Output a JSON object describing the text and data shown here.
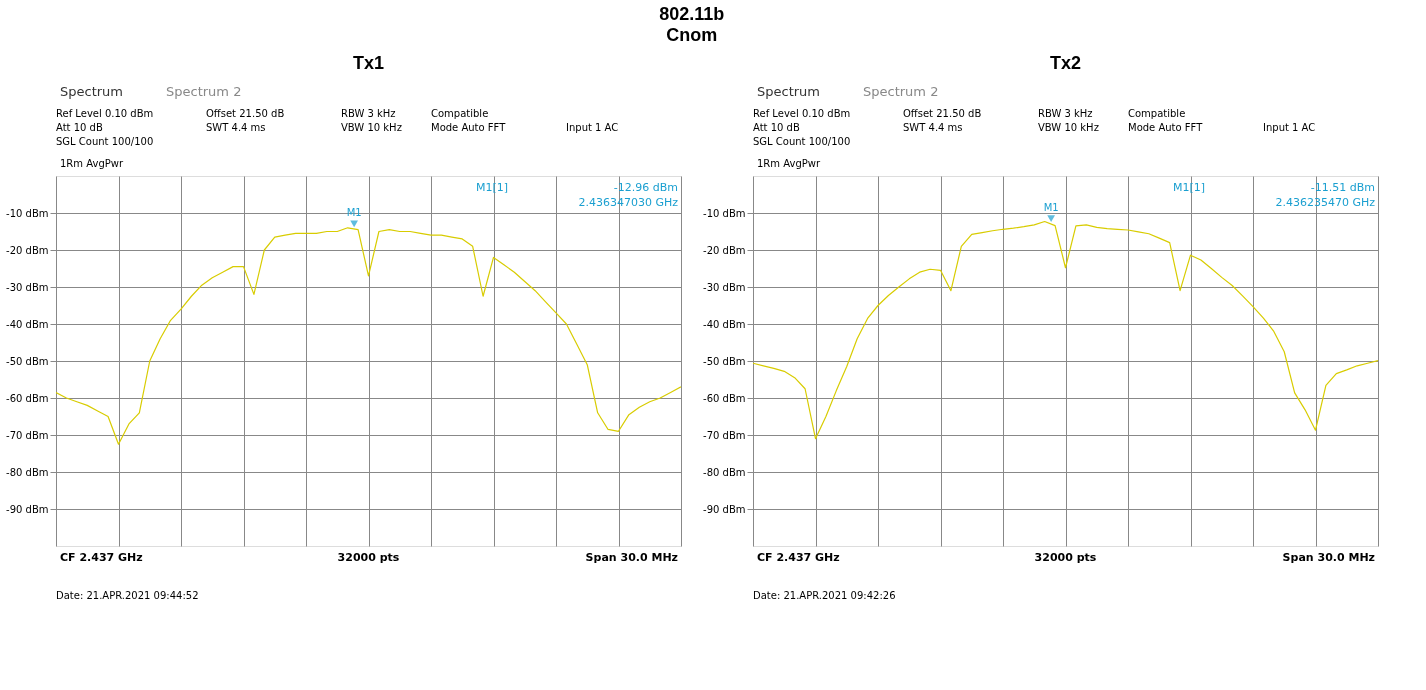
{
  "chart_data": [
    {
      "type": "line",
      "title": "802.11b",
      "subtitle": "Cnom",
      "categories": [
        null,
        null,
        null,
        null,
        null,
        null,
        null,
        null,
        null,
        null,
        null,
        null,
        null,
        null,
        null,
        null,
        null,
        null,
        null,
        null,
        null,
        null,
        null,
        null,
        null,
        null,
        null,
        null,
        null,
        null,
        null,
        null,
        null,
        null,
        null,
        null,
        null,
        null,
        null,
        null,
        null,
        null,
        null,
        null,
        null,
        null,
        null,
        null,
        null,
        null,
        null,
        null,
        null,
        null,
        null,
        null,
        null,
        null,
        null,
        null,
        null
      ],
      "ylim": [
        -100,
        0
      ],
      "yticks": [
        {
          "value": -10,
          "label": "-10 dBm"
        },
        {
          "value": -20,
          "label": "-20 dBm"
        },
        {
          "value": -30,
          "label": "-30 dBm"
        },
        {
          "value": -40,
          "label": "-40 dBm"
        },
        {
          "value": -50,
          "label": "-50 dBm"
        },
        {
          "value": -60,
          "label": "-60 dBm"
        },
        {
          "value": -70,
          "label": "-70 dBm"
        },
        {
          "value": -80,
          "label": "-80 dBm"
        },
        {
          "value": -90,
          "label": "-90 dBm"
        }
      ],
      "tick_labels": "y",
      "grid": true,
      "line_style": "solid",
      "series": [
        {
          "color": "#d8cc00",
          "values": [
            -58.5,
            -60,
            -61,
            -62,
            -63.5,
            -65,
            -72.5,
            -67,
            -64,
            -50,
            -44,
            -39,
            -36,
            -32.5,
            -29.5,
            -27.5,
            -26,
            -24.5,
            -24.5,
            -32,
            -20,
            -16.5,
            -16,
            -15.5,
            -15.5,
            -15.5,
            -15,
            -15,
            -14,
            -14.5,
            -27,
            -15,
            -14.5,
            -15,
            -15,
            -15.5,
            -16,
            -16,
            -16.5,
            -17,
            -19,
            -32.5,
            -22,
            -24,
            -26,
            -28.5,
            -31,
            -34,
            -37,
            -40,
            -45.5,
            -51,
            -64,
            -68.5,
            -69,
            -64.5,
            -62.5,
            -61,
            -60,
            -58.5,
            -57
          ]
        }
      ],
      "annotations": [
        "Tx1",
        "Spectrum",
        "Spectrum 2",
        "Ref Level 0.10 dBm",
        "Offset 21.50 dB",
        "RBW 3 kHz",
        "Compatible",
        "Att 10 dB",
        "SWT 4.4 ms",
        "VBW 10 kHz",
        "Mode Auto FFT",
        "Input 1 AC",
        "SGL Count 100/100",
        "1Rm AvgPwr",
        "M1[1]",
        "-12.96 dBm",
        "2.436347030 GHz",
        "CF 2.437 GHz",
        "32000 pts",
        "Span 30.0 MHz",
        "Date: 21.APR.2021 09:44:52",
        {
          "text": "M1",
          "y": -12.96
        }
      ]
    },
    {
      "type": "line",
      "categories": [
        null,
        null,
        null,
        null,
        null,
        null,
        null,
        null,
        null,
        null,
        null,
        null,
        null,
        null,
        null,
        null,
        null,
        null,
        null,
        null,
        null,
        null,
        null,
        null,
        null,
        null,
        null,
        null,
        null,
        null,
        null,
        null,
        null,
        null,
        null,
        null,
        null,
        null,
        null,
        null,
        null,
        null,
        null,
        null,
        null,
        null,
        null,
        null,
        null,
        null,
        null,
        null,
        null,
        null,
        null,
        null,
        null,
        null,
        null,
        null,
        null
      ],
      "ylim": [
        -100,
        0
      ],
      "yticks": [
        {
          "value": -10,
          "label": "-10 dBm"
        },
        {
          "value": -20,
          "label": "-20 dBm"
        },
        {
          "value": -30,
          "label": "-30 dBm"
        },
        {
          "value": -40,
          "label": "-40 dBm"
        },
        {
          "value": -50,
          "label": "-50 dBm"
        },
        {
          "value": -60,
          "label": "-60 dBm"
        },
        {
          "value": -70,
          "label": "-70 dBm"
        },
        {
          "value": -80,
          "label": "-80 dBm"
        },
        {
          "value": -90,
          "label": "-90 dBm"
        }
      ],
      "tick_labels": "y",
      "grid": true,
      "line_style": "solid",
      "series": [
        {
          "color": "#d8cc00",
          "values": [
            -50.6,
            -51.3,
            -52,
            -52.8,
            -54.5,
            -57.5,
            -71,
            -65,
            -58,
            -51.5,
            -44,
            -38.5,
            -35,
            -32.3,
            -30,
            -27.8,
            -26,
            -25.2,
            -25.5,
            -31,
            -19,
            -15.8,
            -15.3,
            -14.8,
            -14.4,
            -14.1,
            -13.7,
            -13.2,
            -12.3,
            -13.4,
            -24.8,
            -13.5,
            -13.2,
            -13.9,
            -14.2,
            -14.4,
            -14.6,
            -15.1,
            -15.6,
            -16.8,
            -18,
            -31,
            -21.4,
            -22.7,
            -25,
            -27.4,
            -29.6,
            -32.4,
            -35.3,
            -38.4,
            -42,
            -47.5,
            -58.6,
            -63.2,
            -68.7,
            -56.6,
            -53.4,
            -52.4,
            -51.3,
            -50.6,
            -49.9
          ]
        }
      ],
      "annotations": [
        "Tx2",
        "Spectrum",
        "Spectrum 2",
        "Ref Level 0.10 dBm",
        "Offset 21.50 dB",
        "RBW 3 kHz",
        "Compatible",
        "Att 10 dB",
        "SWT 4.4 ms",
        "VBW 10 kHz",
        "Mode Auto FFT",
        "Input 1 AC",
        "SGL Count 100/100",
        "1Rm AvgPwr",
        "M1[1]",
        "-11.51 dBm",
        "2.436235470 GHz",
        "CF 2.437 GHz",
        "32000 pts",
        "Span 30.0 MHz",
        "Date: 21.APR.2021 09:42:26",
        {
          "text": "M1",
          "y": -11.51
        }
      ]
    }
  ]
}
